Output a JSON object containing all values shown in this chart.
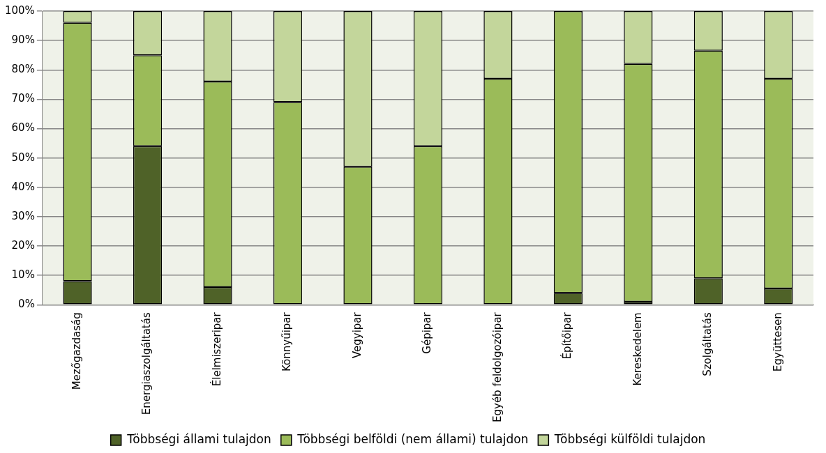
{
  "chart_data": {
    "type": "bar",
    "stacked": true,
    "categories": [
      "Mezőgazdaság",
      "Energiaszolgáltatás",
      "Élelmiszeripar",
      "Könnyűipar",
      "Vegyipar",
      "Gépipar",
      "Egyéb feldolgozóipar",
      "Építőipar",
      "Kereskedelem",
      "Szolgáltatás",
      "Együttesen"
    ],
    "series": [
      {
        "name": "Többségi állami tulajdon",
        "color": "#4f6228",
        "values": [
          8,
          54,
          6,
          0,
          0,
          0,
          0,
          4,
          1,
          9,
          5.5
        ]
      },
      {
        "name": "Többségi belföldi (nem állami) tulajdon",
        "color": "#9bbb59",
        "values": [
          88,
          31,
          70,
          69,
          47,
          54,
          77,
          96,
          81,
          77.5,
          71.5
        ]
      },
      {
        "name": "Többségi külföldi tulajdon",
        "color": "#c3d69b",
        "values": [
          4,
          15,
          24,
          31,
          53,
          46,
          23,
          0,
          18,
          13.5,
          23
        ]
      }
    ],
    "ylim": [
      0,
      100
    ],
    "yticks": [
      {
        "value": 0,
        "label": "0%"
      },
      {
        "value": 10,
        "label": "10%"
      },
      {
        "value": 20,
        "label": "20%"
      },
      {
        "value": 30,
        "label": "30%"
      },
      {
        "value": 40,
        "label": "40%"
      },
      {
        "value": 50,
        "label": "50%"
      },
      {
        "value": 60,
        "label": "60%"
      },
      {
        "value": 70,
        "label": "70%"
      },
      {
        "value": 80,
        "label": "80%"
      },
      {
        "value": 90,
        "label": "90%"
      },
      {
        "value": 100,
        "label": "100%"
      }
    ],
    "grid": "y",
    "legend": "bottom"
  }
}
